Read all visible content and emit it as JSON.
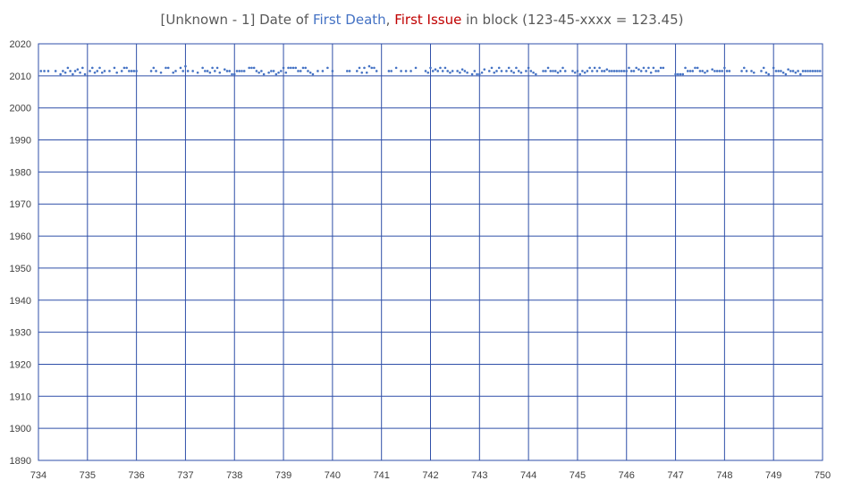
{
  "chart_data": {
    "type": "scatter",
    "title": {
      "part1": "[Unknown - 1] Date of ",
      "part2": "First Death",
      "part3": ", ",
      "part4": "First Issue",
      "part5": " in block (123-45-xxxx = 123.45)"
    },
    "title_colors": {
      "plain": "#595959",
      "death": "#4472c4",
      "issue": "#c00000"
    },
    "point_color": "#4472c4",
    "grid_color": "#2f4fa8",
    "xlim": [
      734,
      750
    ],
    "ylim": [
      1890,
      2020
    ],
    "x_ticks": [
      "734",
      "735",
      "736",
      "737",
      "738",
      "739",
      "740",
      "741",
      "742",
      "743",
      "744",
      "745",
      "746",
      "747",
      "748",
      "749",
      "750"
    ],
    "y_ticks": [
      "2020",
      "2010",
      "2000",
      "1990",
      "1980",
      "1970",
      "1960",
      "1950",
      "1940",
      "1930",
      "1920",
      "1910",
      "1900",
      "1890"
    ],
    "grid": true,
    "legend": "none",
    "series": [
      {
        "points": [
          [
            734.05,
            2011.5
          ],
          [
            734.12,
            2011.5
          ],
          [
            734.2,
            2011.5
          ],
          [
            734.35,
            2011.5
          ],
          [
            734.45,
            2010.5
          ],
          [
            734.5,
            2011.5
          ],
          [
            734.55,
            2011
          ],
          [
            734.6,
            2012.5
          ],
          [
            734.65,
            2011.5
          ],
          [
            734.7,
            2010.5
          ],
          [
            734.75,
            2011.5
          ],
          [
            734.8,
            2012
          ],
          [
            734.85,
            2011
          ],
          [
            734.9,
            2012.5
          ],
          [
            734.95,
            2010.5
          ],
          [
            735.05,
            2011.5
          ],
          [
            735.1,
            2012.5
          ],
          [
            735.15,
            2011
          ],
          [
            735.2,
            2011.5
          ],
          [
            735.25,
            2012.5
          ],
          [
            735.3,
            2011
          ],
          [
            735.35,
            2011.5
          ],
          [
            735.45,
            2011.5
          ],
          [
            735.55,
            2012.5
          ],
          [
            735.6,
            2011
          ],
          [
            735.7,
            2011.5
          ],
          [
            735.75,
            2012.5
          ],
          [
            735.8,
            2012.5
          ],
          [
            735.85,
            2011.5
          ],
          [
            735.9,
            2011.5
          ],
          [
            735.95,
            2011.5
          ],
          [
            736.0,
            2011.5
          ],
          [
            736.3,
            2011.5
          ],
          [
            736.35,
            2012.5
          ],
          [
            736.4,
            2011.5
          ],
          [
            736.5,
            2011
          ],
          [
            736.6,
            2012.5
          ],
          [
            736.65,
            2012.5
          ],
          [
            736.75,
            2011
          ],
          [
            736.8,
            2011.5
          ],
          [
            736.9,
            2012.5
          ],
          [
            736.95,
            2011.5
          ],
          [
            737.0,
            2013
          ],
          [
            737.05,
            2011.5
          ],
          [
            737.15,
            2011.5
          ],
          [
            737.25,
            2011
          ],
          [
            737.35,
            2012.5
          ],
          [
            737.4,
            2011.5
          ],
          [
            737.45,
            2011.5
          ],
          [
            737.5,
            2011
          ],
          [
            737.55,
            2012.5
          ],
          [
            737.6,
            2011.5
          ],
          [
            737.65,
            2012.5
          ],
          [
            737.7,
            2011
          ],
          [
            737.8,
            2012
          ],
          [
            737.85,
            2011.5
          ],
          [
            737.9,
            2011.5
          ],
          [
            737.95,
            2010.5
          ],
          [
            738.0,
            2010.5
          ],
          [
            738.05,
            2011.5
          ],
          [
            738.1,
            2011.5
          ],
          [
            738.15,
            2011.5
          ],
          [
            738.2,
            2011.5
          ],
          [
            738.3,
            2012.5
          ],
          [
            738.35,
            2012.5
          ],
          [
            738.4,
            2012.5
          ],
          [
            738.45,
            2011.5
          ],
          [
            738.5,
            2011
          ],
          [
            738.55,
            2011.5
          ],
          [
            738.6,
            2010.5
          ],
          [
            738.7,
            2011
          ],
          [
            738.75,
            2011.5
          ],
          [
            738.8,
            2011.5
          ],
          [
            738.85,
            2010.5
          ],
          [
            738.9,
            2011
          ],
          [
            738.95,
            2011.5
          ],
          [
            739.0,
            2012.5
          ],
          [
            739.05,
            2011
          ],
          [
            739.1,
            2012.5
          ],
          [
            739.15,
            2012.5
          ],
          [
            739.2,
            2012.5
          ],
          [
            739.25,
            2012.5
          ],
          [
            739.3,
            2011.5
          ],
          [
            739.35,
            2011.5
          ],
          [
            739.4,
            2012.5
          ],
          [
            739.45,
            2012.5
          ],
          [
            739.5,
            2011.5
          ],
          [
            739.55,
            2011
          ],
          [
            739.6,
            2010.5
          ],
          [
            739.7,
            2011.5
          ],
          [
            739.8,
            2011.5
          ],
          [
            739.9,
            2012.5
          ],
          [
            740.0,
            2011.5
          ],
          [
            740.3,
            2011.5
          ],
          [
            740.35,
            2011.5
          ],
          [
            740.5,
            2011.5
          ],
          [
            740.55,
            2012.5
          ],
          [
            740.6,
            2011
          ],
          [
            740.65,
            2012.5
          ],
          [
            740.7,
            2011
          ],
          [
            740.75,
            2013
          ],
          [
            740.8,
            2012.5
          ],
          [
            740.85,
            2012.5
          ],
          [
            740.9,
            2011.5
          ],
          [
            741.15,
            2011.5
          ],
          [
            741.2,
            2011.5
          ],
          [
            741.3,
            2012.5
          ],
          [
            741.4,
            2011.5
          ],
          [
            741.5,
            2011.5
          ],
          [
            741.6,
            2011.5
          ],
          [
            741.7,
            2012.5
          ],
          [
            741.9,
            2011.5
          ],
          [
            741.95,
            2011
          ],
          [
            742.0,
            2012.5
          ],
          [
            742.05,
            2011.5
          ],
          [
            742.1,
            2012
          ],
          [
            742.15,
            2011.5
          ],
          [
            742.2,
            2012.5
          ],
          [
            742.25,
            2011.5
          ],
          [
            742.3,
            2012.5
          ],
          [
            742.35,
            2011.5
          ],
          [
            742.4,
            2011
          ],
          [
            742.45,
            2011.5
          ],
          [
            742.55,
            2011.5
          ],
          [
            742.6,
            2011
          ],
          [
            742.65,
            2012
          ],
          [
            742.7,
            2011.5
          ],
          [
            742.75,
            2011
          ],
          [
            742.85,
            2010.5
          ],
          [
            742.9,
            2011.5
          ],
          [
            742.95,
            2010.5
          ],
          [
            743.0,
            2010.5
          ],
          [
            743.05,
            2011
          ],
          [
            743.1,
            2012
          ],
          [
            743.2,
            2011.5
          ],
          [
            743.25,
            2012.5
          ],
          [
            743.3,
            2011
          ],
          [
            743.35,
            2011.5
          ],
          [
            743.4,
            2012.5
          ],
          [
            743.45,
            2011.5
          ],
          [
            743.55,
            2011.5
          ],
          [
            743.6,
            2012.5
          ],
          [
            743.65,
            2011.5
          ],
          [
            743.7,
            2011
          ],
          [
            743.75,
            2012.5
          ],
          [
            743.8,
            2011.5
          ],
          [
            743.85,
            2011
          ],
          [
            743.95,
            2011.5
          ],
          [
            744.0,
            2012.5
          ],
          [
            744.05,
            2011.5
          ],
          [
            744.1,
            2011
          ],
          [
            744.15,
            2010.5
          ],
          [
            744.3,
            2011.5
          ],
          [
            744.35,
            2011.5
          ],
          [
            744.4,
            2012.5
          ],
          [
            744.45,
            2011.5
          ],
          [
            744.5,
            2011.5
          ],
          [
            744.55,
            2011.5
          ],
          [
            744.6,
            2011
          ],
          [
            744.65,
            2011.5
          ],
          [
            744.7,
            2012.5
          ],
          [
            744.75,
            2011.5
          ],
          [
            744.9,
            2011.5
          ],
          [
            744.95,
            2011
          ],
          [
            745.0,
            2011.5
          ],
          [
            745.05,
            2010.5
          ],
          [
            745.1,
            2011.5
          ],
          [
            745.15,
            2011
          ],
          [
            745.2,
            2011.5
          ],
          [
            745.25,
            2012.5
          ],
          [
            745.3,
            2011.5
          ],
          [
            745.35,
            2012.5
          ],
          [
            745.4,
            2011.5
          ],
          [
            745.45,
            2012.5
          ],
          [
            745.5,
            2011.5
          ],
          [
            745.55,
            2011.5
          ],
          [
            745.6,
            2012
          ],
          [
            745.65,
            2011.5
          ],
          [
            745.7,
            2011.5
          ],
          [
            745.75,
            2011.5
          ],
          [
            745.8,
            2011.5
          ],
          [
            745.85,
            2011.5
          ],
          [
            745.9,
            2011.5
          ],
          [
            745.95,
            2011.5
          ],
          [
            746.0,
            2011.5
          ],
          [
            746.05,
            2012.5
          ],
          [
            746.1,
            2011.5
          ],
          [
            746.15,
            2011.5
          ],
          [
            746.2,
            2012.5
          ],
          [
            746.25,
            2012
          ],
          [
            746.3,
            2011.5
          ],
          [
            746.35,
            2012.5
          ],
          [
            746.4,
            2011.5
          ],
          [
            746.45,
            2012.5
          ],
          [
            746.5,
            2011
          ],
          [
            746.55,
            2012.5
          ],
          [
            746.6,
            2011.5
          ],
          [
            746.65,
            2011.5
          ],
          [
            746.7,
            2012.5
          ],
          [
            746.75,
            2012.5
          ],
          [
            747.0,
            2010.5
          ],
          [
            747.05,
            2010.5
          ],
          [
            747.1,
            2010.5
          ],
          [
            747.15,
            2010.5
          ],
          [
            747.2,
            2012.5
          ],
          [
            747.25,
            2011.5
          ],
          [
            747.3,
            2011.5
          ],
          [
            747.35,
            2011.5
          ],
          [
            747.4,
            2012.5
          ],
          [
            747.45,
            2012.5
          ],
          [
            747.5,
            2011.5
          ],
          [
            747.55,
            2011.5
          ],
          [
            747.6,
            2011
          ],
          [
            747.65,
            2011.5
          ],
          [
            747.75,
            2012
          ],
          [
            747.8,
            2011.5
          ],
          [
            747.85,
            2011.5
          ],
          [
            747.9,
            2011.5
          ],
          [
            747.95,
            2011.5
          ],
          [
            748.0,
            2012.5
          ],
          [
            748.05,
            2011.5
          ],
          [
            748.1,
            2011.5
          ],
          [
            748.35,
            2011.5
          ],
          [
            748.4,
            2012.5
          ],
          [
            748.45,
            2011.5
          ],
          [
            748.55,
            2011.5
          ],
          [
            748.6,
            2011
          ],
          [
            748.75,
            2011.5
          ],
          [
            748.8,
            2012.5
          ],
          [
            748.85,
            2011
          ],
          [
            748.9,
            2010.5
          ],
          [
            749.0,
            2012.5
          ],
          [
            749.05,
            2011.5
          ],
          [
            749.1,
            2011.5
          ],
          [
            749.15,
            2011.5
          ],
          [
            749.2,
            2011
          ],
          [
            749.25,
            2010.5
          ],
          [
            749.3,
            2012
          ],
          [
            749.35,
            2011.5
          ],
          [
            749.4,
            2011.5
          ],
          [
            749.45,
            2011
          ],
          [
            749.5,
            2011.5
          ],
          [
            749.55,
            2010.5
          ],
          [
            749.6,
            2011.5
          ],
          [
            749.65,
            2011.5
          ],
          [
            749.7,
            2011.5
          ],
          [
            749.75,
            2011.5
          ],
          [
            749.8,
            2011.5
          ],
          [
            749.85,
            2011.5
          ],
          [
            749.9,
            2011.5
          ],
          [
            749.95,
            2011.5
          ]
        ]
      }
    ]
  }
}
